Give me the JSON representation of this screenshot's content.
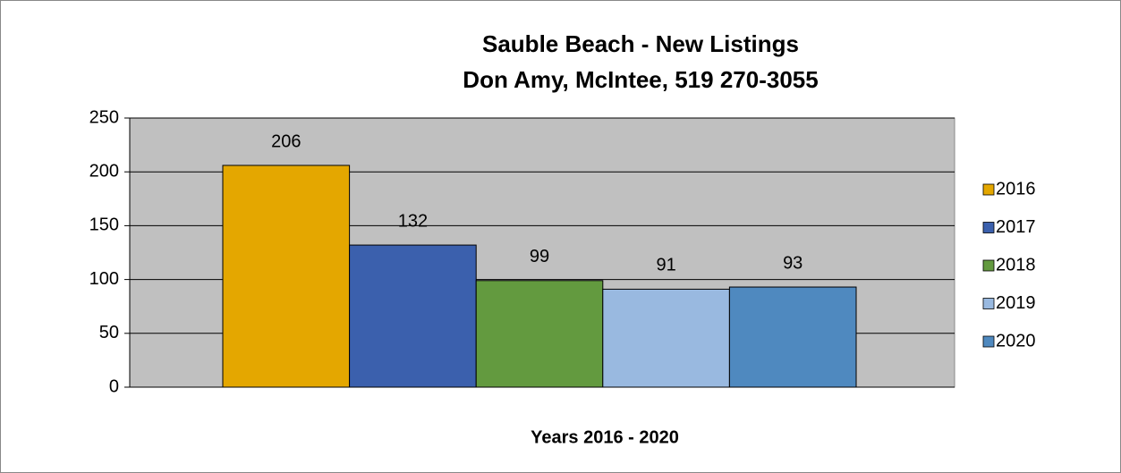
{
  "chart_data": {
    "type": "bar",
    "title": "Sauble Beach - New Listings",
    "subtitle": "Don Amy, McIntee, 519 270-3055",
    "x_label": "Years 2016 - 2020",
    "series": [
      {
        "name": "2016",
        "color": "#e4a700",
        "values": [
          206
        ]
      },
      {
        "name": "2017",
        "color": "#3b60ad",
        "values": [
          132
        ]
      },
      {
        "name": "2018",
        "color": "#639a3f",
        "values": [
          99
        ]
      },
      {
        "name": "2019",
        "color": "#99b9e0",
        "values": [
          91
        ]
      },
      {
        "name": "2020",
        "color": "#4f89bf",
        "values": [
          93
        ]
      }
    ],
    "ylim": [
      0,
      250
    ],
    "yticks": [
      0,
      50,
      100,
      150,
      200,
      250
    ],
    "grid": true,
    "legend": "right",
    "plot_background": "#c0c0c0"
  }
}
